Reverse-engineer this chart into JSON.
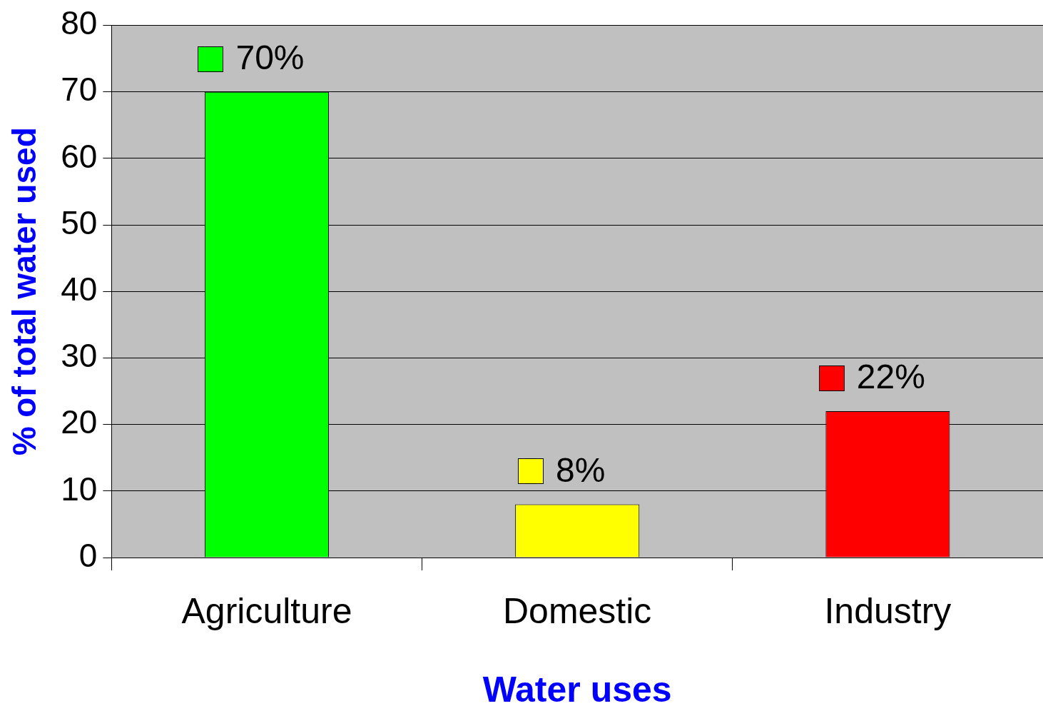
{
  "chart_data": {
    "type": "bar",
    "xlabel": "Water uses",
    "ylabel": "% of total water used",
    "categories": [
      "Agriculture",
      "Domestic",
      "Industry"
    ],
    "values": [
      70,
      8,
      22
    ],
    "colors": [
      "#00ff00",
      "#ffff00",
      "#ff0000"
    ],
    "value_labels": [
      "70%",
      "8%",
      "22%"
    ],
    "ylim": [
      0,
      80
    ],
    "yticks": [
      0,
      10,
      20,
      30,
      40,
      50,
      60,
      70,
      80
    ],
    "grid": "y",
    "legend": false
  }
}
